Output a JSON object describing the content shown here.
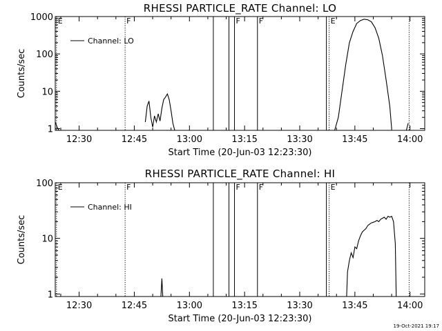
{
  "chart_data": [
    {
      "type": "line",
      "title": "RHESSI PARTICLE_RATE Channel: LO",
      "xlabel": "Start Time (20-Jun-03 12:23:30)",
      "ylabel": "Counts/sec",
      "xlim": [
        "12:23:30",
        "14:04:00"
      ],
      "ylim": [
        0.9,
        1000
      ],
      "yscale": "log",
      "grid": false,
      "legend_position": "top-left",
      "xticks": [
        "12:30",
        "12:45",
        "13:00",
        "13:15",
        "13:30",
        "13:45",
        "14:00"
      ],
      "yticks": [
        {
          "label": "1",
          "value": 1
        },
        {
          "label": "10",
          "value": 10
        },
        {
          "label": "100",
          "value": 100
        },
        {
          "label": "1000",
          "value": 1000
        }
      ],
      "series": [
        {
          "name": "Channel: LO",
          "segments": [
            {
              "x": [
                "12:23:30",
                "12:24:00",
                "12:24:30"
              ],
              "y": [
                1.5,
                1.1,
                0.9
              ]
            },
            {
              "x": [
                "12:48:00",
                "12:48:30",
                "12:49:00",
                "12:49:30",
                "12:50:00",
                "12:50:30",
                "12:51:00",
                "12:51:30",
                "12:52:00",
                "12:52:30",
                "12:53:00",
                "12:53:30",
                "12:54:00",
                "12:54:30",
                "12:55:00",
                "12:55:30",
                "12:56:00"
              ],
              "y": [
                1.5,
                4,
                5.5,
                2,
                1.1,
                2.2,
                1.5,
                2.5,
                1.6,
                3.5,
                6,
                7,
                8.5,
                6,
                3,
                1.4,
                0.9
              ]
            },
            {
              "x": [
                "13:39:30",
                "13:40:30",
                "13:41:30",
                "13:42:30",
                "13:43:30",
                "13:44:30",
                "13:45:30",
                "13:46:30",
                "13:47:30",
                "13:48:30",
                "13:49:30",
                "13:50:30",
                "13:51:30",
                "13:52:30",
                "13:53:30",
                "13:54:30",
                "13:55:00"
              ],
              "y": [
                0.9,
                2,
                10,
                50,
                200,
                400,
                650,
                780,
                850,
                820,
                720,
                500,
                260,
                90,
                20,
                4,
                1
              ]
            },
            {
              "x": [
                "13:59:00",
                "13:59:30"
              ],
              "y": [
                0.9,
                1.4
              ]
            }
          ]
        }
      ],
      "markers": [
        {
          "time": "12:23:50",
          "style": "dotted",
          "label": "E"
        },
        {
          "time": "12:42:30",
          "style": "dotted",
          "label": "F"
        },
        {
          "time": "13:06:30",
          "style": "solid",
          "label": ""
        },
        {
          "time": "13:10:45",
          "style": "solid",
          "label": ""
        },
        {
          "time": "13:12:15",
          "style": "solid",
          "label": "F"
        },
        {
          "time": "13:18:30",
          "style": "solid",
          "label": "F"
        },
        {
          "time": "13:37:15",
          "style": "solid",
          "label": ""
        },
        {
          "time": "13:38:00",
          "style": "dotted",
          "label": "E"
        },
        {
          "time": "13:59:45",
          "style": "dotted",
          "label": ""
        }
      ]
    },
    {
      "type": "line",
      "title": "RHESSI PARTICLE_RATE Channel: HI",
      "xlabel": "Start Time (20-Jun-03 12:23:30)",
      "ylabel": "Counts/sec",
      "xlim": [
        "12:23:30",
        "14:04:00"
      ],
      "ylim": [
        0.9,
        100
      ],
      "yscale": "log",
      "grid": false,
      "legend_position": "top-left",
      "xticks": [
        "12:30",
        "12:45",
        "13:00",
        "13:15",
        "13:30",
        "13:45",
        "14:00"
      ],
      "yticks": [
        {
          "label": "1",
          "value": 1
        },
        {
          "label": "10",
          "value": 10
        },
        {
          "label": "100",
          "value": 100
        }
      ],
      "series": [
        {
          "name": "Channel: HI",
          "segments": [
            {
              "x": [
                "12:52:15",
                "12:52:30",
                "12:52:45"
              ],
              "y": [
                0.9,
                1.9,
                0.9
              ]
            },
            {
              "x": [
                "13:42:45",
                "13:43:00",
                "13:43:30",
                "13:44:00",
                "13:44:30",
                "13:45:00",
                "13:45:30",
                "13:46:00",
                "13:46:30",
                "13:47:00",
                "13:47:30",
                "13:48:00",
                "13:48:30",
                "13:49:00",
                "13:49:30",
                "13:50:00",
                "13:50:30",
                "13:51:00",
                "13:51:30",
                "13:52:00",
                "13:52:30",
                "13:53:00",
                "13:53:30",
                "13:54:00",
                "13:54:30",
                "13:55:00",
                "13:55:30",
                "13:56:00",
                "13:56:15"
              ],
              "y": [
                0.9,
                2.5,
                4,
                5.5,
                4.5,
                7,
                6.5,
                9,
                11,
                13,
                14,
                15,
                17,
                18,
                19,
                19.5,
                20,
                21,
                20,
                22,
                23,
                24,
                22,
                25,
                24,
                25,
                20,
                8,
                0.9
              ]
            }
          ]
        }
      ],
      "markers": [
        {
          "time": "12:23:50",
          "style": "dotted",
          "label": "E"
        },
        {
          "time": "12:42:30",
          "style": "dotted",
          "label": "F"
        },
        {
          "time": "13:06:30",
          "style": "solid",
          "label": ""
        },
        {
          "time": "13:10:45",
          "style": "solid",
          "label": ""
        },
        {
          "time": "13:12:15",
          "style": "solid",
          "label": "F"
        },
        {
          "time": "13:18:30",
          "style": "solid",
          "label": "F"
        },
        {
          "time": "13:37:15",
          "style": "solid",
          "label": ""
        },
        {
          "time": "13:38:00",
          "style": "dotted",
          "label": "E"
        },
        {
          "time": "13:59:45",
          "style": "dotted",
          "label": ""
        }
      ]
    }
  ],
  "footer": {
    "timestamp": "19-Oct-2021 19:17"
  }
}
